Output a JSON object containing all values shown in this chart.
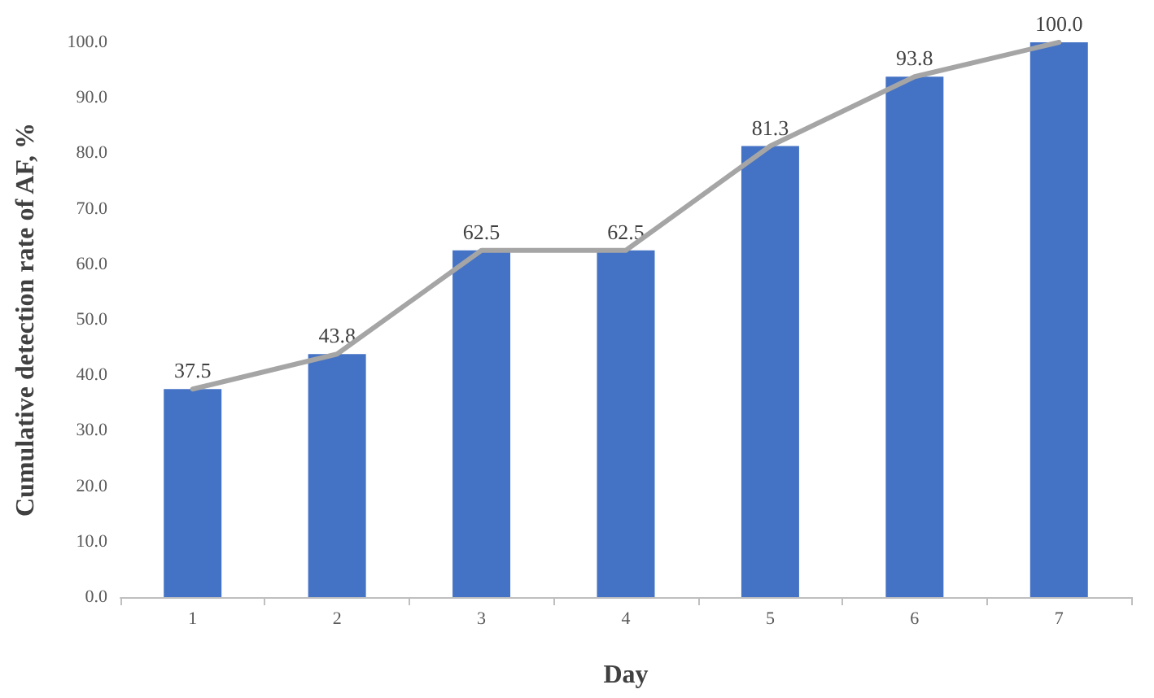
{
  "chart_data": {
    "type": "bar",
    "xlabel": "Day",
    "ylabel": "Cumulative detection rate of AF, %",
    "categories": [
      "1",
      "2",
      "3",
      "4",
      "5",
      "6",
      "7"
    ],
    "series": [
      {
        "type": "bar",
        "color": "#4472c4",
        "values": [
          37.5,
          43.8,
          62.5,
          62.5,
          81.3,
          93.8,
          100
        ],
        "value_labels": [
          "37.5",
          "43.8",
          "62.5",
          "62.5",
          "81.3",
          "93.8",
          "100.0"
        ]
      },
      {
        "type": "line",
        "color": "#a5a5a5",
        "values": [
          37.5,
          43.8,
          62.5,
          62.5,
          81.3,
          93.8,
          100
        ]
      }
    ],
    "ylim": [
      0,
      100
    ],
    "yticks": [
      {
        "value": 0,
        "label": "0.0"
      },
      {
        "value": 10,
        "label": "10.0"
      },
      {
        "value": 20,
        "label": "20.0"
      },
      {
        "value": 30,
        "label": "30.0"
      },
      {
        "value": 40,
        "label": "40.0"
      },
      {
        "value": 50,
        "label": "50.0"
      },
      {
        "value": 60,
        "label": "60.0"
      },
      {
        "value": 70,
        "label": "70.0"
      },
      {
        "value": 80,
        "label": "80.0"
      },
      {
        "value": 90,
        "label": "90.0"
      },
      {
        "value": 100,
        "label": "100.0"
      }
    ],
    "grid": false,
    "marker": "none",
    "line_style": "solid"
  }
}
